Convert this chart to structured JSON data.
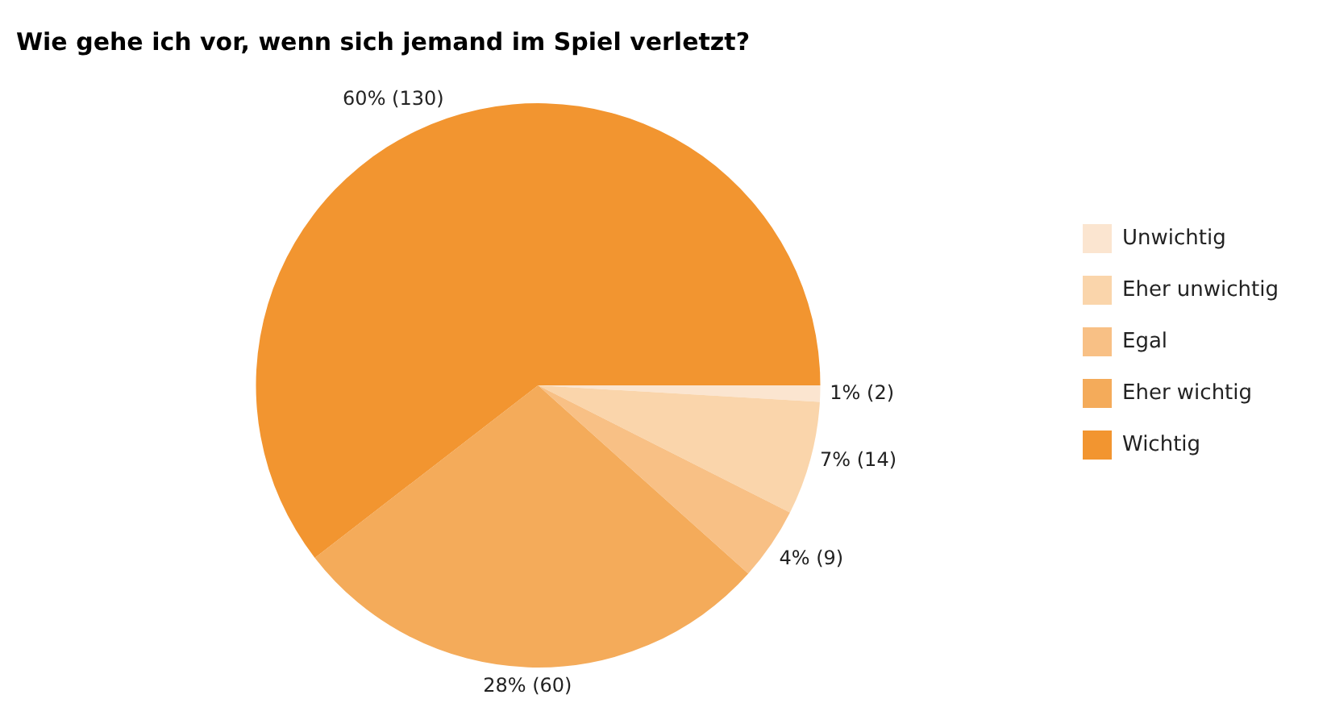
{
  "chart_data": {
    "type": "pie",
    "title": "Wie gehe ich vor, wenn sich jemand im Spiel verletzt?",
    "categories": [
      "Unwichtig",
      "Eher unwichtig",
      "Egal",
      "Eher wichtig",
      "Wichtig"
    ],
    "values": [
      2,
      14,
      9,
      60,
      130
    ],
    "colors": [
      "#fbe5d0",
      "#fad5ab",
      "#f8c085",
      "#f4ab5a",
      "#f29530"
    ],
    "value_labels": [
      "1% (2)",
      "7% (14)",
      "4% (9)",
      "28% (60)",
      "60% (130)"
    ],
    "legend": "right"
  }
}
